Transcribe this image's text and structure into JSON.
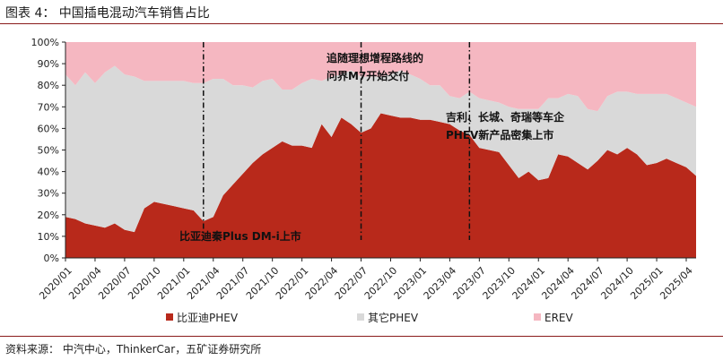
{
  "figure": {
    "title": "图表 4：  中国插电混动汽车销售占比",
    "source": "资料来源：  中汽中心，ThinkerCar，五矿证券研究所"
  },
  "chart_data": {
    "type": "area",
    "stacked": true,
    "y_tick_labels": [
      "0%",
      "10%",
      "20%",
      "30%",
      "40%",
      "50%",
      "60%",
      "70%",
      "80%",
      "90%",
      "100%"
    ],
    "ylim": [
      0,
      100
    ],
    "x_tick_labels": [
      "2020/01",
      "2020/04",
      "2020/07",
      "2020/10",
      "2021/01",
      "2021/04",
      "2021/07",
      "2021/10",
      "2022/01",
      "2022/04",
      "2022/07",
      "2022/10",
      "2023/01",
      "2023/04",
      "2023/07",
      "2023/10",
      "2024/01",
      "2024/04",
      "2024/07",
      "2024/10",
      "2025/01",
      "2025/04"
    ],
    "months": [
      "2020/01",
      "2020/02",
      "2020/03",
      "2020/04",
      "2020/05",
      "2020/06",
      "2020/07",
      "2020/08",
      "2020/09",
      "2020/10",
      "2020/11",
      "2020/12",
      "2021/01",
      "2021/02",
      "2021/03",
      "2021/04",
      "2021/05",
      "2021/06",
      "2021/07",
      "2021/08",
      "2021/09",
      "2021/10",
      "2021/11",
      "2021/12",
      "2022/01",
      "2022/02",
      "2022/03",
      "2022/04",
      "2022/05",
      "2022/06",
      "2022/07",
      "2022/08",
      "2022/09",
      "2022/10",
      "2022/11",
      "2022/12",
      "2023/01",
      "2023/02",
      "2023/03",
      "2023/04",
      "2023/05",
      "2023/06",
      "2023/07",
      "2023/08",
      "2023/09",
      "2023/10",
      "2023/11",
      "2023/12",
      "2024/01",
      "2024/02",
      "2024/03",
      "2024/04",
      "2024/05",
      "2024/06",
      "2024/07",
      "2024/08",
      "2024/09",
      "2024/10",
      "2024/11",
      "2024/12",
      "2025/01",
      "2025/02",
      "2025/03",
      "2025/04",
      "2025/05"
    ],
    "series": [
      {
        "name": "比亚迪PHEV",
        "color": "#b8291b",
        "values": [
          19,
          18,
          16,
          15,
          14,
          16,
          13,
          12,
          23,
          26,
          25,
          24,
          23,
          22,
          17,
          19,
          29,
          34,
          39,
          44,
          48,
          51,
          54,
          52,
          52,
          51,
          62,
          56,
          65,
          62,
          58,
          60,
          67,
          66,
          65,
          65,
          64,
          64,
          63,
          62,
          59,
          57,
          51,
          50,
          49,
          43,
          37,
          40,
          36,
          37,
          48,
          47,
          44,
          41,
          45,
          50,
          48,
          51,
          48,
          43,
          44,
          46,
          44,
          42,
          38
        ]
      },
      {
        "name": "其它PHEV",
        "color": "#d9d9d9",
        "values": [
          66,
          62,
          70,
          66,
          72,
          73,
          72,
          72,
          59,
          56,
          57,
          58,
          59,
          59,
          64,
          64,
          54,
          46,
          41,
          35,
          34,
          32,
          24,
          26,
          29,
          32,
          20,
          28,
          20,
          25,
          26,
          24,
          17,
          19,
          22,
          20,
          19,
          16,
          17,
          13,
          15,
          20,
          23,
          23,
          23,
          27,
          32,
          29,
          33,
          37,
          26,
          29,
          31,
          28,
          23,
          25,
          29,
          26,
          28,
          33,
          32,
          30,
          30,
          30,
          32
        ]
      },
      {
        "name": "EREV",
        "color": "#f5b7c1",
        "values": [
          15,
          20,
          14,
          19,
          14,
          11,
          15,
          16,
          18,
          18,
          18,
          18,
          18,
          19,
          19,
          17,
          17,
          20,
          20,
          21,
          18,
          17,
          22,
          22,
          19,
          17,
          18,
          16,
          15,
          13,
          16,
          16,
          16,
          15,
          13,
          15,
          17,
          20,
          20,
          25,
          26,
          23,
          26,
          27,
          28,
          30,
          31,
          31,
          31,
          26,
          26,
          24,
          25,
          31,
          32,
          25,
          23,
          23,
          24,
          24,
          24,
          24,
          26,
          28,
          30
        ]
      }
    ],
    "vlines_at": [
      "2021/03",
      "2022/07",
      "2023/06"
    ],
    "annotations": [
      {
        "text": "比亚迪秦Plus DM-i上市",
        "at": "2021/03"
      },
      {
        "text_lines": [
          "追随理想增程路线的",
          "问界M7开始交付"
        ],
        "at": "2022/07"
      },
      {
        "text_lines": [
          "吉利、长城、奇瑞等车企",
          "PHEV新产品密集上市"
        ],
        "at": "2023/06"
      }
    ],
    "legend_position": "bottom"
  }
}
